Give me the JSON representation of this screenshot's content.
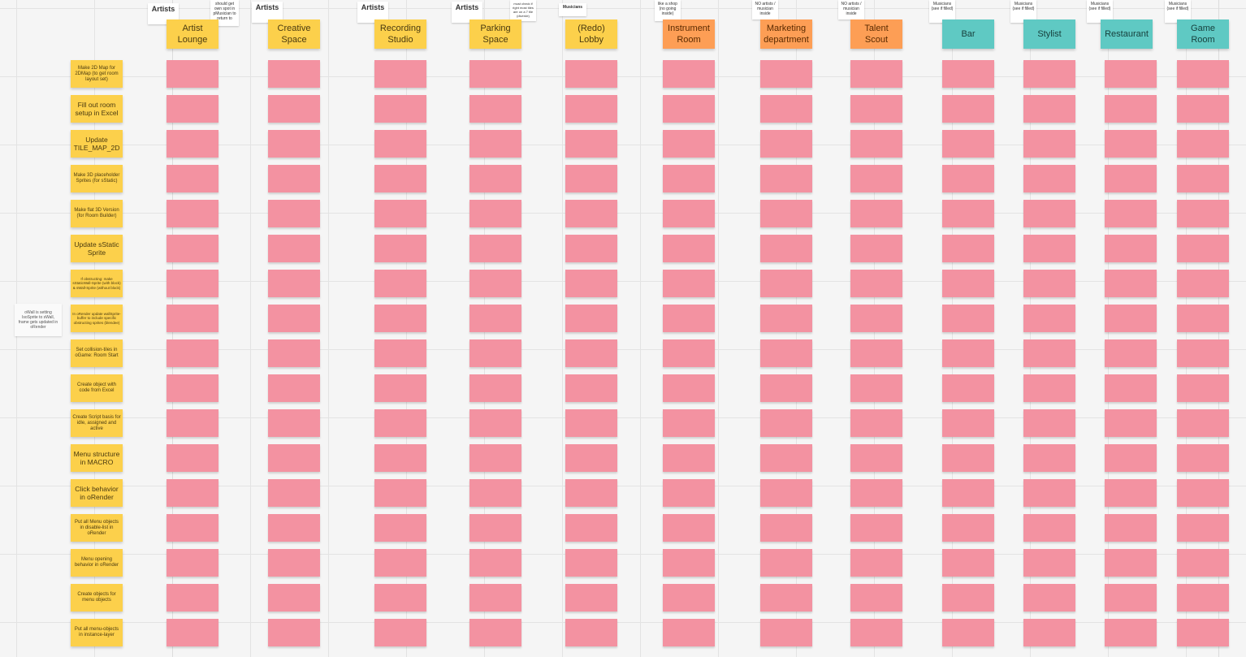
{
  "columns": [
    {
      "label": "Artist Lounge",
      "color": "#fcd04b"
    },
    {
      "label": "Creative Space",
      "color": "#fcd04b"
    },
    {
      "label": "Recording Studio",
      "color": "#fcd04b"
    },
    {
      "label": "Parking Space",
      "color": "#fcd04b"
    },
    {
      "label": "(Redo) Lobby",
      "color": "#fcd04b"
    },
    {
      "label": "Instrument Room",
      "color": "#fd9e55"
    },
    {
      "label": "Marketing department",
      "color": "#fd9e55"
    },
    {
      "label": "Talent Scout",
      "color": "#fd9e55"
    },
    {
      "label": "Bar",
      "color": "#5fc9c3"
    },
    {
      "label": "Stylist",
      "color": "#5fc9c3"
    },
    {
      "label": "Restaurant",
      "color": "#5fc9c3"
    },
    {
      "label": "Game Room",
      "color": "#5fc9c3"
    }
  ],
  "tags": [
    {
      "text": "Artists",
      "style": "big"
    },
    {
      "text": "should get own spot in pMusician to return to",
      "style": "small"
    },
    {
      "text": "Artists",
      "style": "big"
    },
    {
      "text": "Artists",
      "style": "big"
    },
    {
      "text": "Artists",
      "style": "big"
    },
    {
      "text": "must check if right most tiles are on a 7 tile (diverde)",
      "style": "tiny"
    },
    {
      "text": "Musicians",
      "style": "mus"
    },
    {
      "text": "like a shop (no going inside)",
      "style": "small"
    },
    {
      "text": "NO artists / musician inside",
      "style": "small"
    },
    {
      "text": "NO artists / musician inside",
      "style": "small"
    },
    {
      "text": "Musicians (see if filled)",
      "style": "small"
    },
    {
      "text": "Musicians (see if filled)",
      "style": "small"
    },
    {
      "text": "Musicians (see if filled)",
      "style": "small"
    },
    {
      "text": "Musicians (see if filled)",
      "style": "small"
    }
  ],
  "rows": [
    {
      "label": "Make 2D Map for 2DMap (to get room layout set)",
      "size": "s"
    },
    {
      "label": "Fill out room setup in Excel",
      "size": "m"
    },
    {
      "label": "Update TILE_MAP_2D",
      "size": "m"
    },
    {
      "label": "Make 3D placeholder Sprites (for sStatic)",
      "size": "s"
    },
    {
      "label": "Make flat 3D Version (for Room Builder)",
      "size": "s"
    },
    {
      "label": "Update sStatic Sprite",
      "size": "m"
    },
    {
      "label": "If obstructing: make sStaticWall-Sprite (with block) & sWall-Sprite (without block)",
      "size": "xs"
    },
    {
      "label": "In oRender update wallSprite-buffer to include specific obstructing sprites (blendee)",
      "size": "xs"
    },
    {
      "label": "Set collision-tiles in oGame: Room Start",
      "size": "s"
    },
    {
      "label": "Create object with code from Excel",
      "size": "s"
    },
    {
      "label": "Create Script basis for idle, assigned and active",
      "size": "s"
    },
    {
      "label": "Menu structure in MACRO",
      "size": "m"
    },
    {
      "label": "Click behavior in oRender",
      "size": "m"
    },
    {
      "label": "Put all Menu objects in disable-list in oRender",
      "size": "s"
    },
    {
      "label": "Menu opening behavior in oRender",
      "size": "s"
    },
    {
      "label": "Create objects for menu objects",
      "size": "s"
    },
    {
      "label": "Put all menu-objects in instance-layer",
      "size": "s"
    }
  ],
  "side_note": "oWall is setting IsoSprite to sWall, frame gets updated in oRender"
}
